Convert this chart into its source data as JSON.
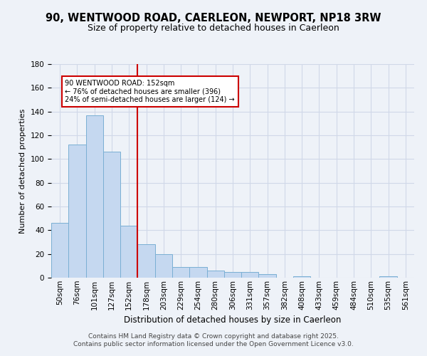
{
  "title": "90, WENTWOOD ROAD, CAERLEON, NEWPORT, NP18 3RW",
  "subtitle": "Size of property relative to detached houses in Caerleon",
  "xlabel": "Distribution of detached houses by size in Caerleon",
  "ylabel": "Number of detached properties",
  "categories": [
    "50sqm",
    "76sqm",
    "101sqm",
    "127sqm",
    "152sqm",
    "178sqm",
    "203sqm",
    "229sqm",
    "254sqm",
    "280sqm",
    "306sqm",
    "331sqm",
    "357sqm",
    "382sqm",
    "408sqm",
    "433sqm",
    "459sqm",
    "484sqm",
    "510sqm",
    "535sqm",
    "561sqm"
  ],
  "values": [
    46,
    112,
    137,
    106,
    44,
    28,
    20,
    9,
    9,
    6,
    5,
    5,
    3,
    0,
    1,
    0,
    0,
    0,
    0,
    1,
    0
  ],
  "bar_color": "#c5d8f0",
  "bar_edge_color": "#7aafd4",
  "vline_index": 4,
  "vline_color": "#cc0000",
  "annotation_line1": "90 WENTWOOD ROAD: 152sqm",
  "annotation_line2": "← 76% of detached houses are smaller (396)",
  "annotation_line3": "24% of semi-detached houses are larger (124) →",
  "annotation_box_color": "#ffffff",
  "annotation_box_edge": "#cc0000",
  "ylim": [
    0,
    180
  ],
  "yticks": [
    0,
    20,
    40,
    60,
    80,
    100,
    120,
    140,
    160,
    180
  ],
  "grid_color": "#d0d8e8",
  "background_color": "#eef2f8",
  "footer_line1": "Contains HM Land Registry data © Crown copyright and database right 2025.",
  "footer_line2": "Contains public sector information licensed under the Open Government Licence v3.0.",
  "title_fontsize": 10.5,
  "subtitle_fontsize": 9,
  "axis_fontsize": 8,
  "tick_fontsize": 7.5,
  "footer_fontsize": 6.5
}
